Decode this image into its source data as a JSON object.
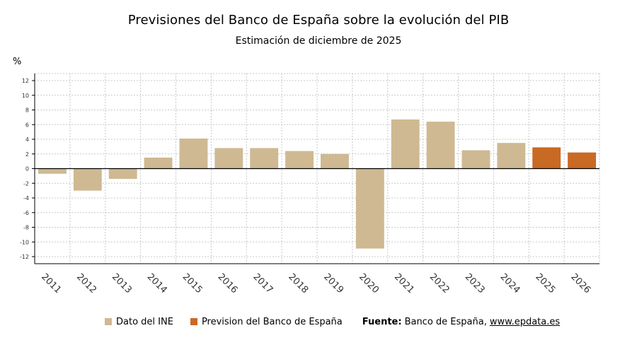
{
  "chart_data": {
    "type": "bar",
    "title": "Previsiones del Banco de España sobre la evolución del PIB",
    "subtitle": "Estimación de diciembre de 2025",
    "ylabel": "%",
    "xlabel": "",
    "ylim": [
      -12,
      12
    ],
    "yticks": [
      12,
      10,
      8,
      6,
      4,
      2,
      0,
      -2,
      -4,
      -6,
      -8,
      -10,
      -12
    ],
    "grid": true,
    "legend_position": "bottom",
    "categories": [
      "2011",
      "2012",
      "2013",
      "2014",
      "2015",
      "2016",
      "2017",
      "2018",
      "2019",
      "2020",
      "2021",
      "2022",
      "2023",
      "2024",
      "2025",
      "2026"
    ],
    "values": [
      -0.7,
      -3.0,
      -1.4,
      1.5,
      4.1,
      2.8,
      2.8,
      2.4,
      2.0,
      -10.9,
      6.7,
      6.4,
      2.5,
      3.5,
      2.9,
      2.2
    ],
    "series_index": [
      0,
      0,
      0,
      0,
      0,
      0,
      0,
      0,
      0,
      0,
      0,
      0,
      0,
      0,
      1,
      1
    ],
    "series": [
      {
        "name": "Dato del INE",
        "color": "#cfb992"
      },
      {
        "name": "Prevision del Banco de España",
        "color": "#c96a24"
      }
    ]
  },
  "source": {
    "label": "Fuente:",
    "text": "Banco de España,",
    "link": "www.epdata.es"
  }
}
